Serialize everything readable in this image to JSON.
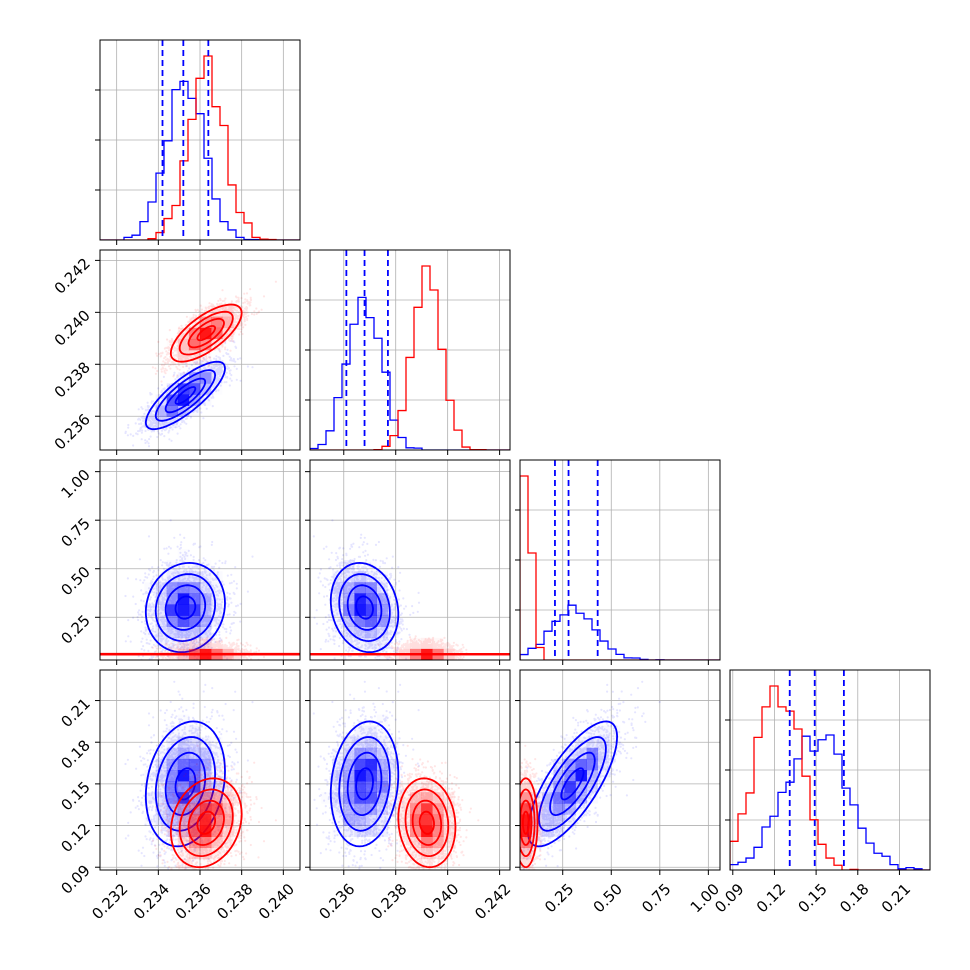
{
  "chart_data": {
    "type": "corner",
    "title": "",
    "parameters": [
      "",
      "",
      "",
      ""
    ],
    "colors": {
      "series_a": "#0000ff",
      "series_b": "#ff0000"
    },
    "grid": true,
    "axes": {
      "p0": {
        "range": [
          0.2312,
          0.2408
        ],
        "ticks": [
          0.232,
          0.234,
          0.236,
          0.238,
          0.24
        ],
        "tick_labels": [
          "0.232",
          "0.234",
          "0.236",
          "0.238",
          "0.240"
        ]
      },
      "p1": {
        "range": [
          0.2347,
          0.2424
        ],
        "ticks": [
          0.236,
          0.238,
          0.24,
          0.242
        ],
        "tick_labels": [
          "0.236",
          "0.238",
          "0.240",
          "0.242"
        ]
      },
      "p2": {
        "range": [
          0.03,
          1.06
        ],
        "ticks": [
          0.25,
          0.5,
          0.75,
          1.0
        ],
        "tick_labels": [
          "0.25",
          "0.50",
          "0.75",
          "1.00"
        ]
      },
      "p3": {
        "range": [
          0.088,
          0.232
        ],
        "ticks": [
          0.09,
          0.12,
          0.15,
          0.18,
          0.21
        ],
        "tick_labels": [
          "0.09",
          "0.12",
          "0.15",
          "0.18",
          "0.21"
        ]
      }
    },
    "series": [
      {
        "name": "",
        "color": "#0000ff",
        "mean": [
          0.2353,
          0.2368,
          0.3,
          0.15
        ],
        "std": [
          0.00095,
          0.00065,
          0.115,
          0.0225
        ],
        "corr": {
          "p0_p1": 0.8,
          "p0_p2": 0.1,
          "p1_p2": -0.15,
          "p0_p3": 0.2,
          "p1_p3": 0.15,
          "p2_p3": 0.75
        },
        "quantiles": {
          "p0": [
            0.2342,
            0.2352,
            0.2364
          ],
          "p1": [
            0.2361,
            0.2368,
            0.2377
          ],
          "p2": [
            0.21,
            0.28,
            0.43
          ],
          "p3": [
            0.131,
            0.149,
            0.17
          ]
        }
      },
      {
        "name": "",
        "color": "#ff0000",
        "mean": [
          0.2363,
          0.2392,
          0.06,
          0.122
        ],
        "std": [
          0.00085,
          0.00055,
          0.03,
          0.016
        ],
        "corr": {
          "p0_p1": 0.7,
          "p0_p2": 0.0,
          "p1_p2": 0.0,
          "p0_p3": 0.2,
          "p1_p3": -0.1,
          "p2_p3": 0.0
        },
        "quantiles": {}
      }
    ],
    "hist_bins": 25,
    "contour_levels_sigma": [
      0.5,
      1.0,
      1.5,
      2.0
    ],
    "quantile_line_style": "dashed"
  }
}
